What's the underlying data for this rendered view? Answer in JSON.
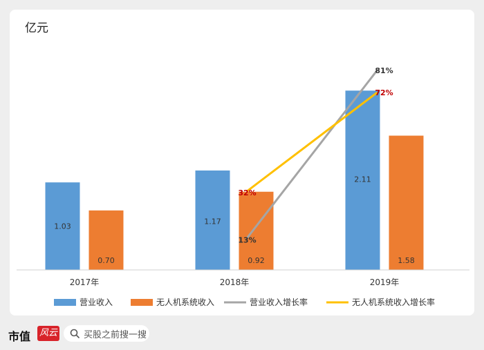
{
  "chart_data": {
    "type": "bar",
    "unit_label": "亿元",
    "categories": [
      "2017年",
      "2018年",
      "2019年"
    ],
    "series": [
      {
        "name": "营业收入",
        "kind": "bar",
        "color": "#5b9bd5",
        "values": [
          1.03,
          1.17,
          2.11
        ],
        "labels": [
          "1.03",
          "1.17",
          "2.11"
        ]
      },
      {
        "name": "无人机系统收入",
        "kind": "bar",
        "color": "#ed7d31",
        "values": [
          0.7,
          0.92,
          1.58
        ],
        "labels": [
          "0.70",
          "0.92",
          "1.58"
        ]
      },
      {
        "name": "营业收入增长率",
        "kind": "line",
        "color": "#a5a5a5",
        "label_color": "#333333",
        "values": [
          null,
          13,
          81
        ],
        "labels": [
          "",
          "13%",
          "81%"
        ]
      },
      {
        "name": "无人机系统收入增长率",
        "kind": "line",
        "color": "#ffc000",
        "label_color": "#c00000",
        "values": [
          null,
          32,
          72
        ],
        "labels": [
          "",
          "32%",
          "72%"
        ]
      }
    ],
    "ylim": [
      0,
      2.9
    ],
    "y2lim": [
      0,
      100
    ],
    "grid": false,
    "legend_position": "bottom"
  },
  "footer": {
    "brand": "市值",
    "brand_logo": "风云",
    "search_placeholder": "买股之前搜一搜",
    "search_icon": "search-icon"
  }
}
